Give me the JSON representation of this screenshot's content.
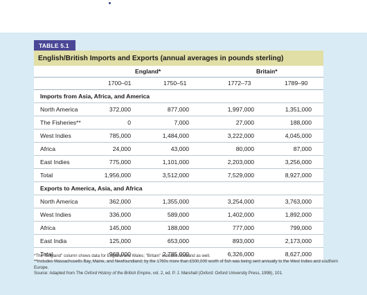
{
  "tag": "TABLE 5.1",
  "title": "English/British Imports and Exports (annual averages in pounds sterling)",
  "headers": {
    "england": "England*",
    "britain": "Britain*",
    "years": [
      "1700–01",
      "1750–51",
      "1772–73",
      "1789–90"
    ]
  },
  "sections": [
    {
      "heading": "Imports from Asia, Africa, and America",
      "rows": [
        {
          "label": "North America",
          "values": [
            "372,000",
            "877,000",
            "1,997,000",
            "1,351,000"
          ]
        },
        {
          "label": "The Fisheries**",
          "values": [
            "0",
            "7,000",
            "27,000",
            "188,000"
          ]
        },
        {
          "label": "West Indies",
          "values": [
            "785,000",
            "1,484,000",
            "3,222,000",
            "4,045,000"
          ]
        },
        {
          "label": "Africa",
          "values": [
            "24,000",
            "43,000",
            "80,000",
            "87,000"
          ]
        },
        {
          "label": "East Indies",
          "values": [
            "775,000",
            "1,101,000",
            "2,203,000",
            "3,256,000"
          ]
        },
        {
          "label": "Total",
          "values": [
            "1,956,000",
            "3,512,000",
            "7,529,000",
            "8,927,000"
          ]
        }
      ]
    },
    {
      "heading": "Exports to America, Asia, and Africa",
      "rows": [
        {
          "label": "North America",
          "values": [
            "362,000",
            "1,355,000",
            "3,254,000",
            "3,763,000"
          ]
        },
        {
          "label": "West Indies",
          "values": [
            "336,000",
            "589,000",
            "1,402,000",
            "1,892,000"
          ]
        },
        {
          "label": "Africa",
          "values": [
            "145,000",
            "188,000",
            "777,000",
            "799,000"
          ]
        },
        {
          "label": "East India",
          "values": [
            "125,000",
            "653,000",
            "893,000",
            "2,173,000"
          ]
        },
        {
          "label": "Total",
          "values": [
            "968,000",
            "2,785,000",
            "6,326,000",
            "8,627,000"
          ]
        }
      ]
    }
  ],
  "notes": {
    "n1": "*The \"England\" column shows data for England and Wales; \"Britain\" includes Scotland as well.",
    "n2": "**Includes Massachusetts Bay, Maine, and Newfoundland; by the 1760s more than £500,000 worth of fish was being sent annually to the West Indies and southern Europe.",
    "source_prefix": "Source: Adapted from ",
    "source_title": "The Oxford History of the British Empire",
    "source_suffix": ", vol. 2, ed. P. J. Marshall (Oxford: Oxford University Press, 1998), 101."
  },
  "colors": {
    "panel": "#d9ebf4",
    "title_bar": "#e1dfa6",
    "tag": "#4b4796",
    "rule": "#b9c7cf"
  }
}
